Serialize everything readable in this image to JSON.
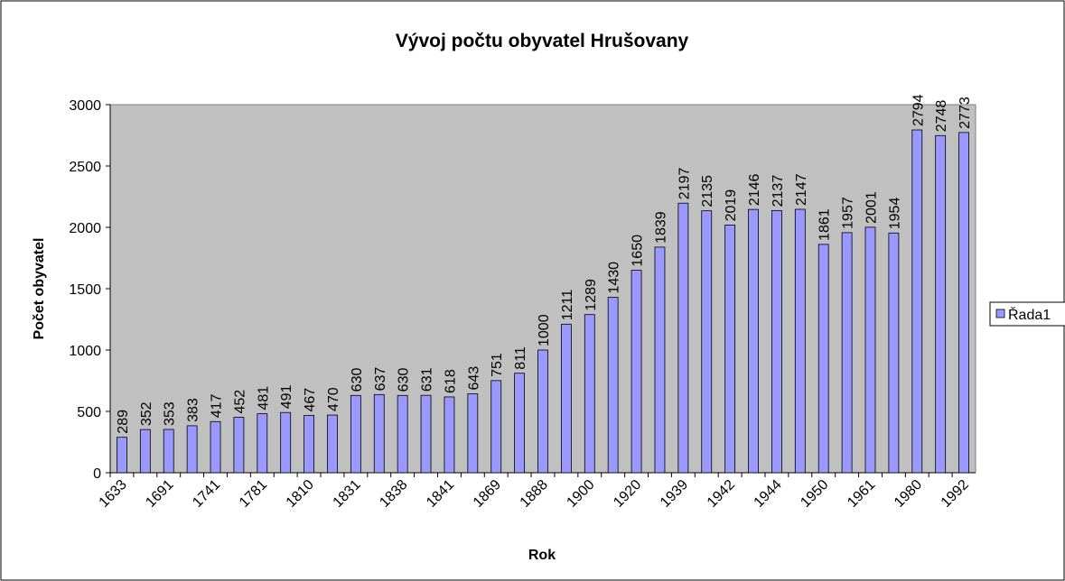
{
  "chart_data": {
    "type": "bar",
    "title": "Vývoj počtu obyvatel Hrušovany",
    "x_label": "Rok",
    "y_label": "Počet obyvatel",
    "categories": [
      "1633",
      null,
      "1691",
      null,
      "1741",
      null,
      "1781",
      null,
      "1810",
      null,
      "1831",
      null,
      "1838",
      null,
      "1841",
      null,
      "1869",
      null,
      "1888",
      null,
      "1900",
      null,
      "1920",
      null,
      "1939",
      null,
      "1942",
      null,
      "1944",
      null,
      "1950",
      null,
      "1961",
      null,
      "1980",
      null,
      "1992"
    ],
    "series": [
      {
        "name": "Řada1",
        "color": "#9999ff",
        "values": [
          289,
          352,
          353,
          383,
          417,
          452,
          481,
          491,
          467,
          470,
          630,
          637,
          630,
          631,
          618,
          643,
          751,
          811,
          1000,
          1211,
          1289,
          1430,
          1650,
          1839,
          2197,
          2135,
          2019,
          2146,
          2137,
          2147,
          1861,
          1957,
          2001,
          1954,
          2794,
          2748,
          2773
        ]
      }
    ],
    "ylim": [
      0,
      3000
    ],
    "yticks": [
      0,
      500,
      1000,
      1500,
      2000,
      2500,
      3000
    ],
    "grid": false,
    "legend": "right",
    "plot_background": "#c0c0c0"
  }
}
